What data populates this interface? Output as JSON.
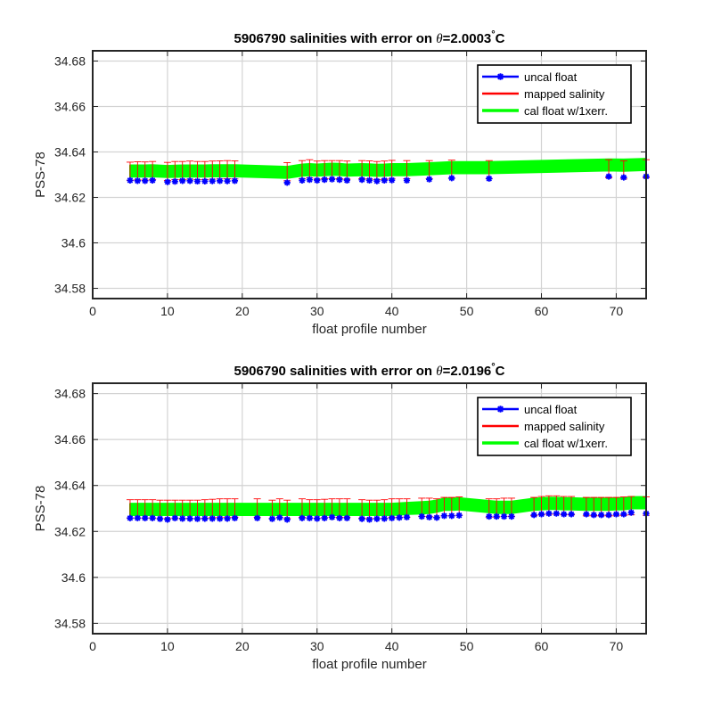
{
  "chart_data": [
    {
      "type": "scatter",
      "title_prefix": "5906790 salinities with error on ",
      "title_theta": "θ",
      "title_value": "=2.0003",
      "title_degree": "°",
      "title_unit": "C",
      "xlabel": "float profile number",
      "ylabel": "PSS-78",
      "xlim": [
        0,
        74
      ],
      "ylim": [
        34.5755,
        34.6845
      ],
      "xticks": [
        "0",
        "10",
        "20",
        "30",
        "40",
        "50",
        "60",
        "70"
      ],
      "yticks": [
        "34.58",
        "34.6",
        "34.62",
        "34.64",
        "34.66",
        "34.68"
      ],
      "grid": true,
      "legend_position": "top-right",
      "legend": [
        "uncal float",
        "mapped salinity",
        "cal float w/1xerr."
      ],
      "colors": {
        "uncal": "#0000ff",
        "mapped": "#ff0000",
        "cal": "#00ff00"
      },
      "series": [
        {
          "name": "uncal float",
          "x": [
            5,
            6,
            7,
            8,
            10,
            11,
            12,
            13,
            14,
            15,
            16,
            17,
            18,
            19,
            26,
            28,
            29,
            30,
            31,
            32,
            33,
            34,
            36,
            37,
            38,
            39,
            40,
            42,
            45,
            48,
            53,
            69,
            71,
            74
          ],
          "y": [
            34.6275,
            34.6273,
            34.6273,
            34.6275,
            34.6268,
            34.627,
            34.6273,
            34.6273,
            34.6271,
            34.6271,
            34.6272,
            34.6273,
            34.6272,
            34.6273,
            34.6265,
            34.6275,
            34.6278,
            34.6275,
            34.6278,
            34.628,
            34.6278,
            34.6275,
            34.6278,
            34.6275,
            34.6272,
            34.6275,
            34.6276,
            34.6275,
            34.628,
            34.6285,
            34.6283,
            34.6292,
            34.6288,
            34.6292
          ]
        },
        {
          "name": "mapped salinity",
          "x": [
            5,
            6,
            7,
            8,
            10,
            11,
            12,
            13,
            14,
            15,
            16,
            17,
            18,
            19,
            26,
            28,
            29,
            30,
            31,
            32,
            33,
            34,
            36,
            37,
            38,
            39,
            40,
            42,
            45,
            48,
            53,
            69,
            71,
            74
          ],
          "y": [
            34.6315,
            34.6317,
            34.6316,
            34.6318,
            34.6314,
            34.6318,
            34.6318,
            34.632,
            34.6318,
            34.6318,
            34.632,
            34.6321,
            34.6322,
            34.6321,
            34.6313,
            34.6322,
            34.6326,
            34.632,
            34.6322,
            34.6322,
            34.6322,
            34.632,
            34.6322,
            34.6321,
            34.6318,
            34.632,
            34.6323,
            34.6322,
            34.6322,
            34.6324,
            34.6322,
            34.6326,
            34.6321,
            34.6326
          ],
          "err": 0.004
        },
        {
          "name": "cal float w/1xerr.",
          "x": [
            5,
            6,
            7,
            8,
            10,
            11,
            12,
            13,
            14,
            15,
            16,
            17,
            18,
            19,
            26,
            28,
            29,
            30,
            31,
            32,
            33,
            34,
            36,
            37,
            38,
            39,
            40,
            42,
            45,
            48,
            53,
            69,
            71,
            74
          ],
          "y": [
            34.6316,
            34.6316,
            34.6316,
            34.6317,
            34.6314,
            34.6315,
            34.6316,
            34.6316,
            34.6316,
            34.6316,
            34.6317,
            34.6317,
            34.6317,
            34.6317,
            34.631,
            34.632,
            34.6322,
            34.632,
            34.6322,
            34.6324,
            34.6323,
            34.632,
            34.6322,
            34.6321,
            34.6319,
            34.632,
            34.6322,
            34.6322,
            34.6326,
            34.6331,
            34.6331,
            34.6343,
            34.6342,
            34.6345
          ],
          "err": 0.0025
        }
      ]
    },
    {
      "type": "scatter",
      "title_prefix": "5906790 salinities with error on ",
      "title_theta": "θ",
      "title_value": "=2.0196",
      "title_degree": "°",
      "title_unit": "C",
      "xlabel": "float profile number",
      "ylabel": "PSS-78",
      "xlim": [
        0,
        74
      ],
      "ylim": [
        34.5755,
        34.6845
      ],
      "xticks": [
        "0",
        "10",
        "20",
        "30",
        "40",
        "50",
        "60",
        "70"
      ],
      "yticks": [
        "34.58",
        "34.6",
        "34.62",
        "34.64",
        "34.66",
        "34.68"
      ],
      "grid": true,
      "legend_position": "top-right",
      "legend": [
        "uncal float",
        "mapped salinity",
        "cal float w/1xerr."
      ],
      "colors": {
        "uncal": "#0000ff",
        "mapped": "#ff0000",
        "cal": "#00ff00"
      },
      "series": [
        {
          "name": "uncal float",
          "x": [
            5,
            6,
            7,
            8,
            9,
            10,
            11,
            12,
            13,
            14,
            15,
            16,
            17,
            18,
            19,
            22,
            24,
            25,
            26,
            28,
            29,
            30,
            31,
            32,
            33,
            34,
            36,
            37,
            38,
            39,
            40,
            41,
            42,
            44,
            45,
            46,
            47,
            48,
            49,
            53,
            54,
            55,
            56,
            59,
            60,
            61,
            62,
            63,
            64,
            66,
            67,
            68,
            69,
            70,
            71,
            72,
            74
          ],
          "y": [
            34.6258,
            34.6258,
            34.6258,
            34.6258,
            34.6255,
            34.6252,
            34.6258,
            34.6256,
            34.6256,
            34.6255,
            34.6256,
            34.6256,
            34.6256,
            34.6256,
            34.6258,
            34.6258,
            34.6255,
            34.626,
            34.6252,
            34.6258,
            34.6258,
            34.6256,
            34.6258,
            34.6262,
            34.6258,
            34.6258,
            34.6255,
            34.6252,
            34.6255,
            34.6256,
            34.6258,
            34.626,
            34.6262,
            34.6265,
            34.6262,
            34.626,
            34.6268,
            34.6268,
            34.627,
            34.6265,
            34.6265,
            34.6265,
            34.6265,
            34.6272,
            34.6275,
            34.6278,
            34.6278,
            34.6275,
            34.6275,
            34.6275,
            34.6272,
            34.6272,
            34.6272,
            34.6275,
            34.6275,
            34.6282,
            34.6278
          ]
        },
        {
          "name": "mapped salinity",
          "x": [
            5,
            6,
            7,
            8,
            9,
            10,
            11,
            12,
            13,
            14,
            15,
            16,
            17,
            18,
            19,
            22,
            24,
            25,
            26,
            28,
            29,
            30,
            31,
            32,
            33,
            34,
            36,
            37,
            38,
            39,
            40,
            41,
            42,
            44,
            45,
            46,
            47,
            48,
            49,
            53,
            54,
            55,
            56,
            59,
            60,
            61,
            62,
            63,
            64,
            66,
            67,
            68,
            69,
            70,
            71,
            72,
            74
          ],
          "y": [
            34.6298,
            34.6298,
            34.6298,
            34.6298,
            34.6296,
            34.6296,
            34.6296,
            34.6296,
            34.6296,
            34.6296,
            34.6298,
            34.63,
            34.6302,
            34.6302,
            34.6302,
            34.6302,
            34.6296,
            34.6302,
            34.6296,
            34.6302,
            34.6298,
            34.6298,
            34.63,
            34.6302,
            34.6302,
            34.6302,
            34.6298,
            34.6296,
            34.6296,
            34.6298,
            34.6302,
            34.6302,
            34.6302,
            34.6305,
            34.6305,
            34.6302,
            34.6308,
            34.6308,
            34.631,
            34.6302,
            34.6302,
            34.6305,
            34.6305,
            34.6308,
            34.6312,
            34.6315,
            34.6315,
            34.6312,
            34.6312,
            34.6308,
            34.6308,
            34.6308,
            34.6308,
            34.6308,
            34.631,
            34.6312,
            34.631
          ],
          "err": 0.004
        },
        {
          "name": "cal float w/1xerr.",
          "x": [
            5,
            6,
            7,
            8,
            9,
            10,
            11,
            12,
            13,
            14,
            15,
            16,
            17,
            18,
            19,
            22,
            24,
            25,
            26,
            28,
            29,
            30,
            31,
            32,
            33,
            34,
            36,
            37,
            38,
            39,
            40,
            41,
            42,
            44,
            45,
            46,
            47,
            48,
            49,
            53,
            54,
            55,
            56,
            59,
            60,
            61,
            62,
            63,
            64,
            66,
            67,
            68,
            69,
            70,
            71,
            72,
            74
          ],
          "y": [
            34.6296,
            34.6296,
            34.6296,
            34.6296,
            34.6296,
            34.6296,
            34.6296,
            34.6296,
            34.6296,
            34.6296,
            34.6296,
            34.6296,
            34.6296,
            34.6296,
            34.6296,
            34.6296,
            34.6296,
            34.6296,
            34.6296,
            34.6296,
            34.6296,
            34.6296,
            34.6296,
            34.6296,
            34.6296,
            34.6296,
            34.6296,
            34.6296,
            34.6296,
            34.6296,
            34.6296,
            34.6298,
            34.63,
            34.6303,
            34.6305,
            34.631,
            34.6318,
            34.6318,
            34.632,
            34.6308,
            34.6305,
            34.6305,
            34.6305,
            34.6318,
            34.632,
            34.6322,
            34.6322,
            34.632,
            34.632,
            34.6318,
            34.6318,
            34.6318,
            34.6318,
            34.632,
            34.632,
            34.6325,
            34.6325
          ],
          "err": 0.0025
        }
      ]
    }
  ]
}
